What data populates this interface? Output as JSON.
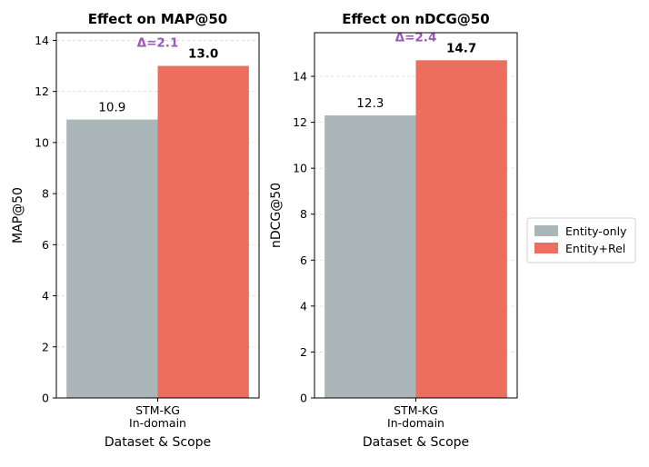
{
  "chart_data": [
    {
      "type": "bar",
      "title": "Effect on MAP@50",
      "ylabel": "MAP@50",
      "xlabel": "Dataset & Scope",
      "categories": [
        "STM-KG\nIn-domain"
      ],
      "ylim": [
        0,
        14.3
      ],
      "yticks": [
        0,
        2,
        4,
        6,
        8,
        10,
        12,
        14
      ],
      "grid": true,
      "series": [
        {
          "name": "Entity-only",
          "values": [
            10.9
          ],
          "labels": [
            "10.9"
          ]
        },
        {
          "name": "Entity+Rel",
          "values": [
            13.0
          ],
          "labels": [
            "13.0"
          ]
        }
      ],
      "annotation": "Δ=2.1"
    },
    {
      "type": "bar",
      "title": "Effect on nDCG@50",
      "ylabel": "nDCG@50",
      "xlabel": "Dataset & Scope",
      "categories": [
        "STM-KG\nIn-domain"
      ],
      "ylim": [
        0,
        15.9
      ],
      "yticks": [
        0,
        2,
        4,
        6,
        8,
        10,
        12,
        14
      ],
      "grid": true,
      "series": [
        {
          "name": "Entity-only",
          "values": [
            12.3
          ],
          "labels": [
            "12.3"
          ]
        },
        {
          "name": "Entity+Rel",
          "values": [
            14.7
          ],
          "labels": [
            "14.7"
          ]
        }
      ],
      "annotation": "Δ=2.4"
    }
  ],
  "legend": {
    "placement": "right",
    "items": [
      {
        "label": "Entity-only",
        "color": "#aab6b7"
      },
      {
        "label": "Entity+Rel",
        "color": "#ec6e5e"
      }
    ]
  },
  "colors": {
    "entity_only": "#aab6b7",
    "entity_rel": "#ec6e5e",
    "annotation": "#9b59b6",
    "grid": "#d8d8d8",
    "axis": "#000000"
  }
}
